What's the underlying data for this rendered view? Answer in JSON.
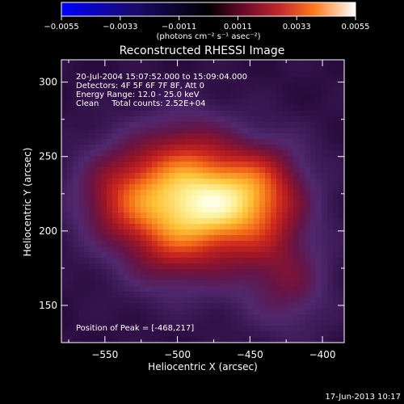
{
  "chart_data": {
    "type": "heatmap",
    "title": "Reconstructed RHESSI Image",
    "xlabel": "Heliocentric X (arcsec)",
    "ylabel": "Heliocentric Y (arcsec)",
    "xlim": [
      -580,
      -385
    ],
    "ylim": [
      125,
      315
    ],
    "x_ticks": [
      -550,
      -500,
      -450,
      -400
    ],
    "x_tick_labels": [
      "−550",
      "−500",
      "−450",
      "−400"
    ],
    "y_ticks": [
      150,
      200,
      250,
      300
    ],
    "y_tick_labels": [
      "150",
      "200",
      "250",
      "300"
    ],
    "colorbar": {
      "range": [
        -0.0055,
        0.0055
      ],
      "ticks": [
        -0.0055,
        -0.0033,
        -0.0011,
        0.0011,
        0.0033,
        0.0055
      ],
      "tick_labels": [
        "−0.0055",
        "−0.0033",
        "−0.0011",
        "0.0011",
        "0.0033",
        "0.0055"
      ],
      "unit_label": "(photons cm⁻² s⁻¹ asec⁻²)",
      "colors": [
        "#0000ff",
        "#000000",
        "#5a0a2a",
        "#c2262e",
        "#ff6a1a",
        "#ffd040",
        "#ffffff"
      ]
    },
    "annotations": [
      "20-Jul-2004 15:07:52.000 to 15:09:04.000",
      "Detectors: 4F 5F 6F 7F 8F, Att 0",
      "Energy Range: 12.0 - 25.0 keV",
      "Clean     Total counts: 2.52E+04"
    ],
    "peak_label": "Position of Peak = [-468,217]",
    "peak": [
      -468,
      217
    ],
    "sources": [
      {
        "x": -500,
        "y": 212,
        "sx": 32,
        "sy": 24,
        "amp": 1.0
      },
      {
        "x": -468,
        "y": 222,
        "sx": 30,
        "sy": 22,
        "amp": 0.95
      },
      {
        "x": -520,
        "y": 240,
        "sx": 30,
        "sy": 22,
        "amp": 0.55
      },
      {
        "x": -545,
        "y": 218,
        "sx": 20,
        "sy": 20,
        "amp": 0.4
      },
      {
        "x": -440,
        "y": 235,
        "sx": 22,
        "sy": 22,
        "amp": 0.5
      },
      {
        "x": -440,
        "y": 190,
        "sx": 26,
        "sy": 30,
        "amp": 0.48
      },
      {
        "x": -420,
        "y": 160,
        "sx": 18,
        "sy": 22,
        "amp": 0.35
      },
      {
        "x": -505,
        "y": 180,
        "sx": 24,
        "sy": 20,
        "amp": 0.4
      },
      {
        "x": -490,
        "y": 262,
        "sx": 20,
        "sy": 18,
        "amp": 0.35
      }
    ]
  },
  "footer": {
    "date": "17-Jun-2013 10:17"
  }
}
